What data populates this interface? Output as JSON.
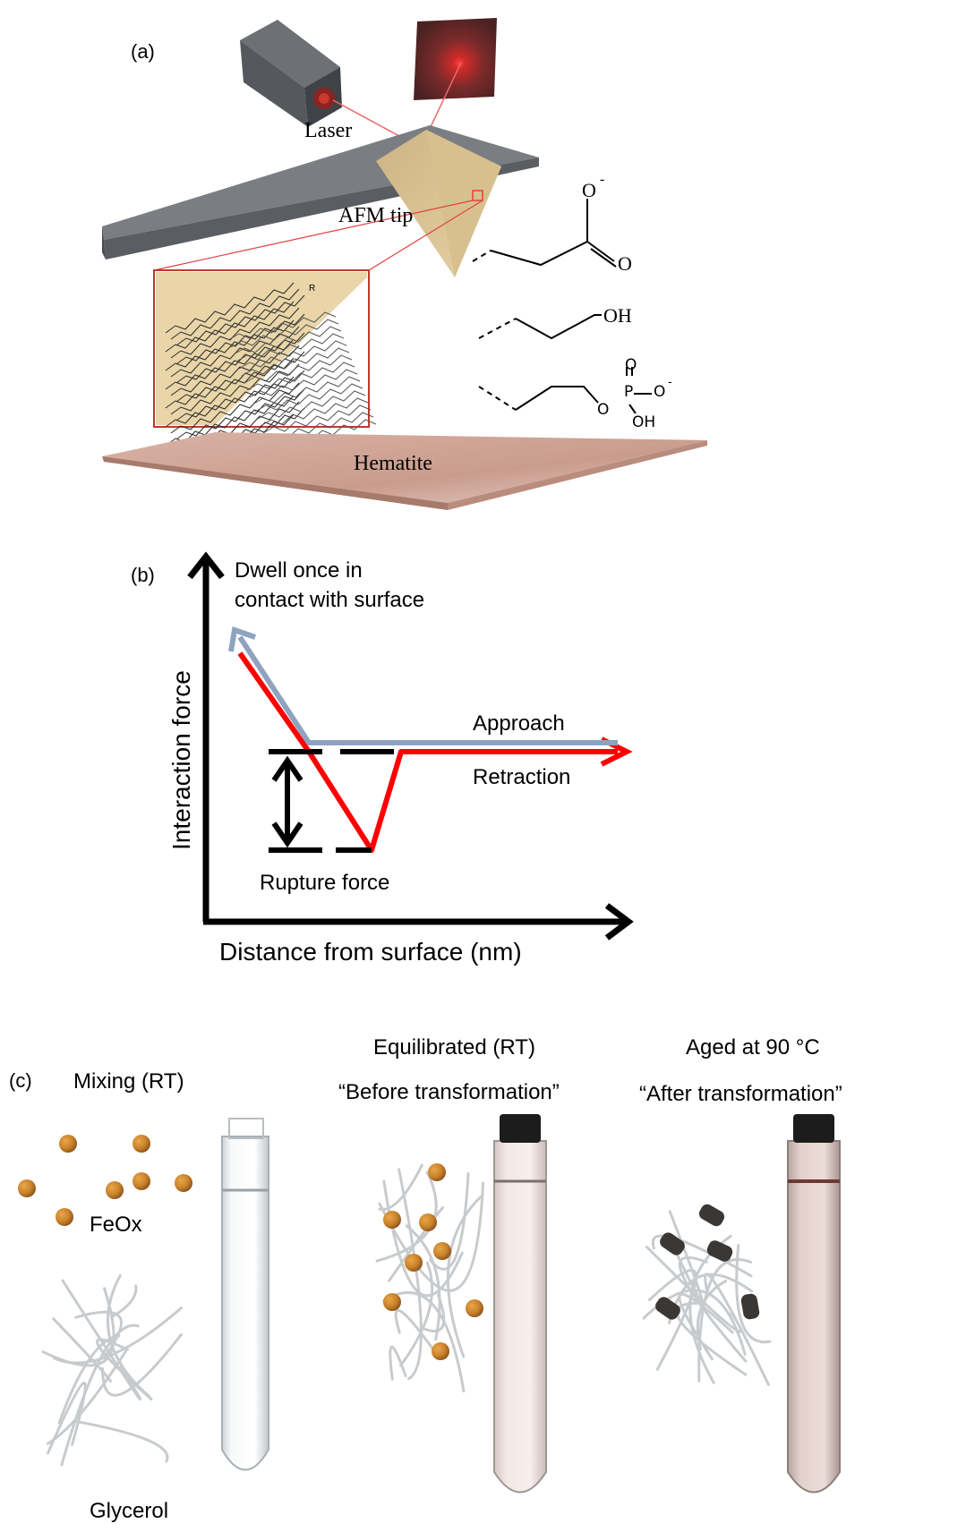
{
  "panel_a": {
    "label": "(a)",
    "laser": "Laser",
    "afm_tip": "AFM tip",
    "hematite": "Hematite",
    "chain_r": "R",
    "chem": {
      "o_minus": "O",
      "minus": "-",
      "o_double": "O",
      "oh": "OH",
      "p": "P",
      "p_o_top": "O",
      "p_o_right": "O",
      "p_o_left": "O",
      "p_oh": "OH"
    }
  },
  "panel_b": {
    "label": "(b)",
    "dwell_line1": "Dwell once in",
    "dwell_line2": "contact with surface",
    "approach": "Approach",
    "retraction": "Retraction",
    "rupture": "Rupture force",
    "ylabel": "Interaction force",
    "xlabel": "Distance from surface (nm)",
    "colors": {
      "approach": "#8fa3bf",
      "retraction": "#ff0000"
    }
  },
  "panel_c": {
    "label": "(c)",
    "mixing": "Mixing (RT)",
    "feox": "FeOx",
    "glycerol": "Glycerol",
    "equil_line1": "Equilibrated (RT)",
    "equil_line2": "“Before transformation”",
    "aged_line1": "Aged at 90 °C",
    "aged_line2": "“After transformation”",
    "colors": {
      "particle": "#c9822a",
      "aged_particle": "#3a3735"
    }
  }
}
